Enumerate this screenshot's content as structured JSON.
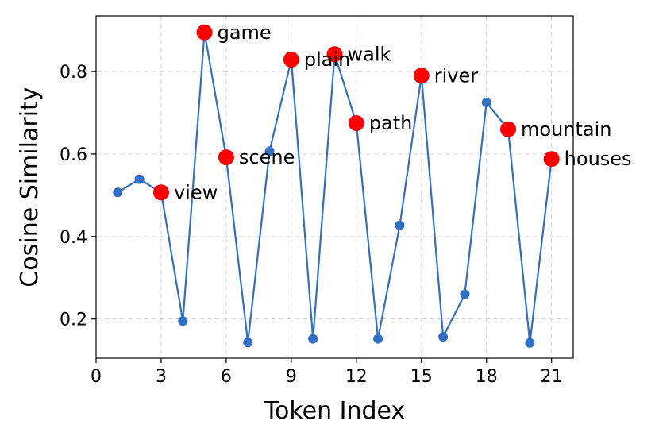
{
  "chart_data": {
    "type": "line",
    "xlabel": "Token Index",
    "ylabel": "Cosine Similarity",
    "xlim": [
      0,
      22
    ],
    "ylim": [
      0.105,
      0.935
    ],
    "xticks": [
      0,
      3,
      6,
      9,
      12,
      15,
      18,
      21
    ],
    "yticks": [
      0.2,
      0.4,
      0.6,
      0.8
    ],
    "grid": true,
    "line_color": "#2f6fc6",
    "highlight_color": "#ff0000",
    "series": [
      {
        "x": [
          1,
          2,
          3,
          4,
          5,
          6,
          7,
          8,
          9,
          10,
          11,
          12,
          13,
          14,
          15,
          16,
          17,
          18,
          19,
          20,
          21
        ],
        "values": [
          0.507,
          0.539,
          0.507,
          0.195,
          0.895,
          0.592,
          0.143,
          0.607,
          0.829,
          0.152,
          0.842,
          0.675,
          0.152,
          0.427,
          0.79,
          0.157,
          0.26,
          0.725,
          0.66,
          0.142,
          0.588
        ]
      }
    ],
    "highlights": [
      {
        "x": 3,
        "y": 0.507,
        "label": "view"
      },
      {
        "x": 5,
        "y": 0.895,
        "label": "game"
      },
      {
        "x": 6,
        "y": 0.592,
        "label": "scene"
      },
      {
        "x": 9,
        "y": 0.829,
        "label": "plain"
      },
      {
        "x": 11,
        "y": 0.842,
        "label": "walk"
      },
      {
        "x": 12,
        "y": 0.675,
        "label": "path"
      },
      {
        "x": 15,
        "y": 0.79,
        "label": "river"
      },
      {
        "x": 19,
        "y": 0.66,
        "label": "mountain"
      },
      {
        "x": 21,
        "y": 0.588,
        "label": "houses"
      }
    ]
  }
}
